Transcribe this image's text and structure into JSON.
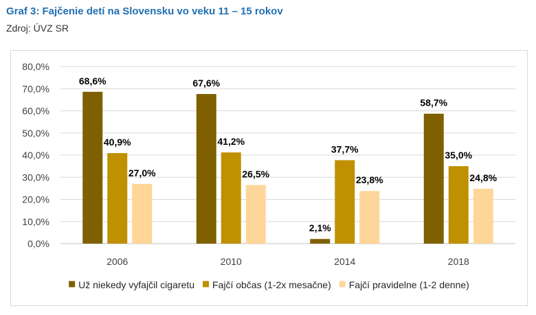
{
  "title": "Graf 3: Fajčenie detí na Slovensku vo veku 11 – 15 rokov",
  "source": "Zdroj: ÚVZ SR",
  "chart_data": {
    "type": "bar",
    "categories": [
      "2006",
      "2010",
      "2014",
      "2018"
    ],
    "series": [
      {
        "name": "Už niekedy vyfajčil cigaretu",
        "color": "#7F6000",
        "values": [
          68.6,
          67.6,
          2.1,
          58.7
        ],
        "labels": [
          "68,6%",
          "67,6%",
          "2,1%",
          "58,7%"
        ]
      },
      {
        "name": "Fajčí občas (1-2x mesačne)",
        "color": "#BF9000",
        "values": [
          40.9,
          41.2,
          37.7,
          35.0
        ],
        "labels": [
          "40,9%",
          "41,2%",
          "37,7%",
          "35,0%"
        ]
      },
      {
        "name": "Fajčí pravidelne (1-2 denne)",
        "color": "#FFD699",
        "values": [
          27.0,
          26.5,
          23.8,
          24.8
        ],
        "labels": [
          "27,0%",
          "26,5%",
          "23,8%",
          "24,8%"
        ]
      }
    ],
    "yticks": [
      "0,0%",
      "10,0%",
      "20,0%",
      "30,0%",
      "40,0%",
      "50,0%",
      "60,0%",
      "70,0%",
      "80,0%"
    ],
    "ylim": [
      0,
      80
    ],
    "grid": true,
    "legend_position": "bottom"
  }
}
